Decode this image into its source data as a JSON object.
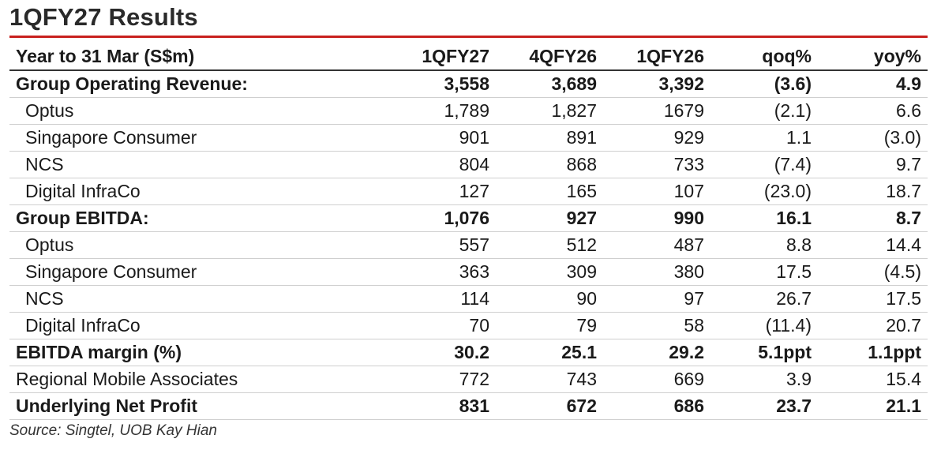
{
  "title": "1QFY27 Results",
  "header": [
    "Year to 31 Mar (S$m)",
    "1QFY27",
    "4QFY26",
    "1QFY26",
    "qoq%",
    "yoy%"
  ],
  "rows": [
    {
      "label": "Group Operating Revenue:",
      "bold": true,
      "indent": false,
      "values": [
        "3,558",
        "3,689",
        "3,392",
        "(3.6)",
        "4.9"
      ]
    },
    {
      "label": "Optus",
      "bold": false,
      "indent": true,
      "values": [
        "1,789",
        "1,827",
        "1679",
        "(2.1)",
        "6.6"
      ]
    },
    {
      "label": "Singapore Consumer",
      "bold": false,
      "indent": true,
      "values": [
        "901",
        "891",
        "929",
        "1.1",
        "(3.0)"
      ]
    },
    {
      "label": "NCS",
      "bold": false,
      "indent": true,
      "values": [
        "804",
        "868",
        "733",
        "(7.4)",
        "9.7"
      ]
    },
    {
      "label": "Digital InfraCo",
      "bold": false,
      "indent": true,
      "values": [
        "127",
        "165",
        "107",
        "(23.0)",
        "18.7"
      ]
    },
    {
      "label": "Group EBITDA:",
      "bold": true,
      "indent": false,
      "values": [
        "1,076",
        "927",
        "990",
        "16.1",
        "8.7"
      ]
    },
    {
      "label": "Optus",
      "bold": false,
      "indent": true,
      "values": [
        "557",
        "512",
        "487",
        "8.8",
        "14.4"
      ]
    },
    {
      "label": "Singapore Consumer",
      "bold": false,
      "indent": true,
      "values": [
        "363",
        "309",
        "380",
        "17.5",
        "(4.5)"
      ]
    },
    {
      "label": "NCS",
      "bold": false,
      "indent": true,
      "values": [
        "114",
        "90",
        "97",
        "26.7",
        "17.5"
      ]
    },
    {
      "label": "Digital InfraCo",
      "bold": false,
      "indent": true,
      "values": [
        "70",
        "79",
        "58",
        "(11.4)",
        "20.7"
      ]
    },
    {
      "label": "EBITDA margin (%)",
      "bold": true,
      "indent": false,
      "values": [
        "30.2",
        "25.1",
        "29.2",
        "5.1ppt",
        "1.1ppt"
      ]
    },
    {
      "label": "Regional Mobile Associates",
      "bold": false,
      "indent": false,
      "values": [
        "772",
        "743",
        "669",
        "3.9",
        "15.4"
      ]
    },
    {
      "label": "Underlying Net Profit",
      "bold": true,
      "indent": false,
      "values": [
        "831",
        "672",
        "686",
        "23.7",
        "21.1"
      ]
    }
  ],
  "source": "Source: Singtel, UOB Kay Hian",
  "accent_color": "#c8201e"
}
